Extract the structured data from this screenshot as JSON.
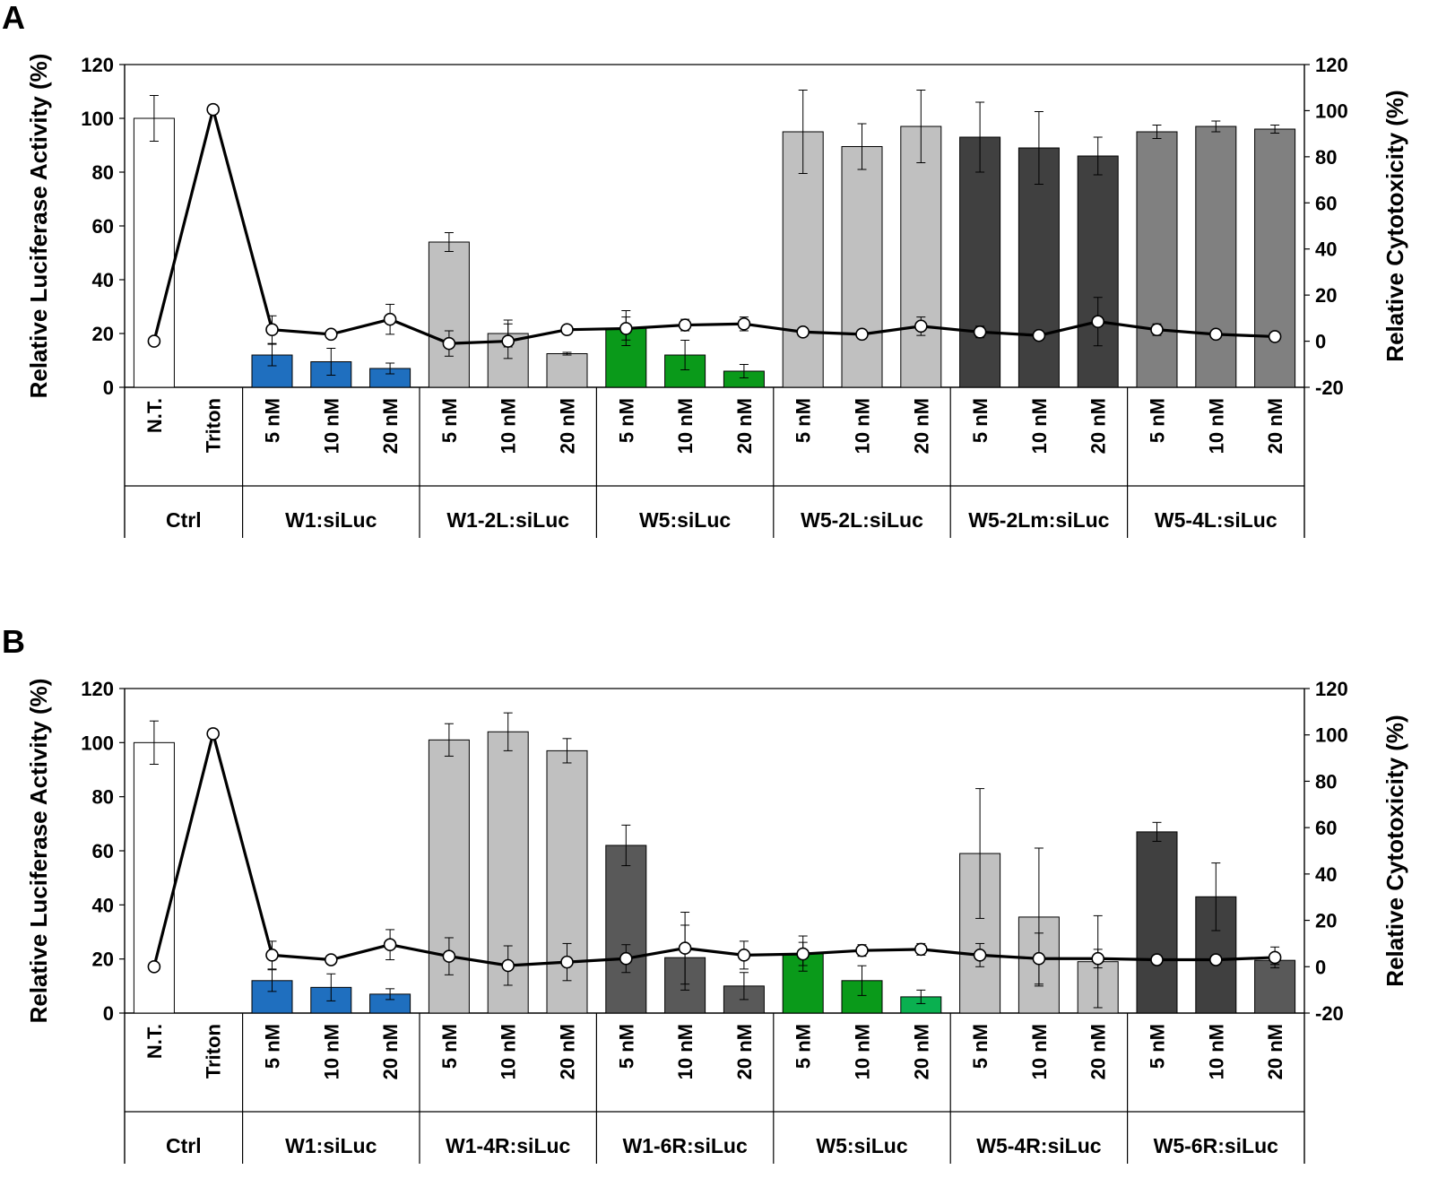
{
  "chart_data": [
    {
      "panel": "A",
      "type": "bar",
      "ylabel": "Relative Luciferase Activity (%)",
      "y2label": "Relative Cytotoxicity (%)",
      "ylim": [
        0,
        120
      ],
      "y2lim": [
        -20,
        120
      ],
      "yticks": [
        "0",
        "20",
        "40",
        "60",
        "80",
        "100",
        "120"
      ],
      "y2ticks": [
        "-20",
        "0",
        "20",
        "40",
        "60",
        "80",
        "100",
        "120"
      ],
      "categories": [
        "N.T.",
        "Triton",
        "5 nM",
        "10 nM",
        "20 nM",
        "5 nM",
        "10 nM",
        "20 nM",
        "5 nM",
        "10 nM",
        "20 nM",
        "5 nM",
        "10 nM",
        "20 nM",
        "5 nM",
        "10 nM",
        "20 nM",
        "5 nM",
        "10 nM",
        "20 nM"
      ],
      "groups": [
        {
          "label": "Ctrl",
          "count": 2
        },
        {
          "label": "W1:siLuc",
          "count": 3
        },
        {
          "label": "W1-2L:siLuc",
          "count": 3
        },
        {
          "label": "W5:siLuc",
          "count": 3
        },
        {
          "label": "W5-2L:siLuc",
          "count": 3
        },
        {
          "label": "W5-2Lm:siLuc",
          "count": 3
        },
        {
          "label": "W5-4L:siLuc",
          "count": 3
        }
      ],
      "series": [
        {
          "name": "Relative Luciferase Activity",
          "kind": "bar",
          "values": [
            100,
            null,
            12,
            9.5,
            7,
            54,
            20,
            12.5,
            22,
            12,
            6,
            95,
            89.5,
            97,
            93,
            89,
            86,
            95,
            97,
            96
          ],
          "errors": [
            8.5,
            null,
            4,
            5,
            2,
            3.5,
            5,
            0.5,
            6.5,
            5.5,
            2.5,
            15.5,
            8.5,
            13.5,
            13,
            13.5,
            7,
            2.5,
            2,
            1.5
          ],
          "colors": [
            "#ffffff",
            "#ffffff",
            "#1f6fbf",
            "#1f6fbf",
            "#1f6fbf",
            "#c0c0c0",
            "#c0c0c0",
            "#c0c0c0",
            "#0a9a1a",
            "#0a9a1a",
            "#0a9a1a",
            "#c0c0c0",
            "#c0c0c0",
            "#c0c0c0",
            "#404040",
            "#404040",
            "#404040",
            "#808080",
            "#808080",
            "#808080"
          ]
        },
        {
          "name": "Relative Cytotoxicity",
          "kind": "line",
          "axis": "right",
          "values": [
            0,
            100.5,
            5,
            3,
            9.5,
            -1,
            0,
            5,
            5.5,
            7,
            7.5,
            4,
            3,
            6.5,
            4,
            2.5,
            8.5,
            5,
            3,
            2
          ],
          "errors": [
            0,
            2,
            6,
            1.5,
            6.5,
            5.5,
            7.5,
            0.5,
            5,
            2.5,
            3,
            0.5,
            2,
            4,
            2.5,
            0.5,
            10.5,
            2.5,
            0.5,
            0.5
          ]
        }
      ]
    },
    {
      "panel": "B",
      "type": "bar",
      "ylabel": "Relative Luciferase Activity (%)",
      "y2label": "Relative Cytotoxicity (%)",
      "ylim": [
        0,
        120
      ],
      "y2lim": [
        -20,
        120
      ],
      "yticks": [
        "0",
        "20",
        "40",
        "60",
        "80",
        "100",
        "120"
      ],
      "y2ticks": [
        "-20",
        "0",
        "20",
        "40",
        "60",
        "80",
        "100",
        "120"
      ],
      "categories": [
        "N.T.",
        "Triton",
        "5 nM",
        "10 nM",
        "20 nM",
        "5 nM",
        "10 nM",
        "20 nM",
        "5 nM",
        "10 nM",
        "20 nM",
        "5 nM",
        "10 nM",
        "20 nM",
        "5 nM",
        "10 nM",
        "20 nM",
        "5 nM",
        "10 nM",
        "20 nM"
      ],
      "groups": [
        {
          "label": "Ctrl",
          "count": 2
        },
        {
          "label": "W1:siLuc",
          "count": 3
        },
        {
          "label": "W1-4R:siLuc",
          "count": 3
        },
        {
          "label": "W1-6R:siLuc",
          "count": 3
        },
        {
          "label": "W5:siLuc",
          "count": 3
        },
        {
          "label": "W5-4R:siLuc",
          "count": 3
        },
        {
          "label": "W5-6R:siLuc",
          "count": 3
        }
      ],
      "series": [
        {
          "name": "Relative Luciferase Activity",
          "kind": "bar",
          "values": [
            100,
            null,
            12,
            9.5,
            7,
            101,
            104,
            97,
            62,
            20.5,
            10,
            22,
            12,
            6,
            59,
            35.5,
            19,
            67,
            43,
            19.5
          ],
          "errors": [
            8,
            null,
            4,
            5,
            2,
            6,
            7,
            4.5,
            7.5,
            12,
            5,
            6.5,
            5.5,
            2.5,
            24,
            25.5,
            17,
            3.5,
            12.5,
            1.5
          ],
          "colors": [
            "#ffffff",
            "#ffffff",
            "#1f6fbf",
            "#1f6fbf",
            "#1f6fbf",
            "#c0c0c0",
            "#c0c0c0",
            "#c0c0c0",
            "#595959",
            "#595959",
            "#595959",
            "#0a9a1a",
            "#0a9a1a",
            "#0ab050",
            "#c0c0c0",
            "#c0c0c0",
            "#c0c0c0",
            "#404040",
            "#404040",
            "#595959"
          ]
        },
        {
          "name": "Relative Cytotoxicity",
          "kind": "line",
          "axis": "right",
          "values": [
            0,
            100.5,
            5,
            3,
            9.5,
            4.5,
            0.5,
            2,
            3.5,
            8,
            5,
            5.5,
            7,
            7.5,
            5,
            3.5,
            3.5,
            3,
            3,
            4
          ],
          "errors": [
            0,
            2,
            6,
            1.5,
            6.5,
            8,
            8.5,
            8,
            6,
            15.5,
            6,
            5,
            2.5,
            2.5,
            5,
            11,
            4,
            0.5,
            0.5,
            4.5
          ]
        }
      ]
    }
  ]
}
